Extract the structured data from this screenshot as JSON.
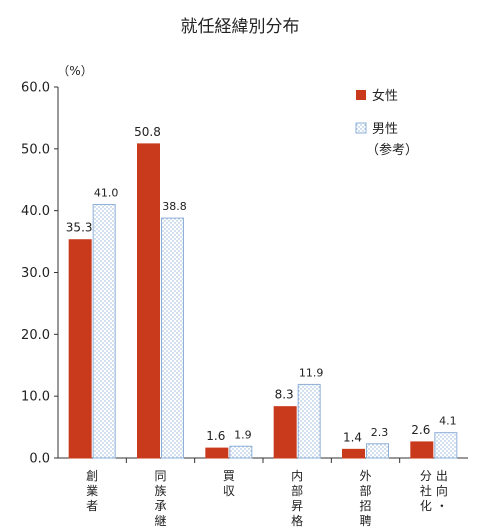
{
  "chart_data": {
    "type": "bar",
    "title": "就任経緯別分布",
    "unit_label": "（%）",
    "ylim": [
      0,
      60
    ],
    "yticks": [
      "0.0",
      "10.0",
      "20.0",
      "30.0",
      "40.0",
      "50.0",
      "60.0"
    ],
    "categories": [
      [
        "創",
        "業",
        "者"
      ],
      [
        "同",
        "族",
        "承",
        "継"
      ],
      [
        "買",
        "収"
      ],
      [
        "内",
        "部",
        "昇",
        "格"
      ],
      [
        "外",
        "部",
        "招",
        "聘"
      ],
      [
        [
          "分",
          "社",
          "化"
        ],
        [
          "出",
          "向",
          "・"
        ]
      ]
    ],
    "series": [
      {
        "name": "女性",
        "values": [
          35.3,
          50.8,
          1.6,
          8.3,
          1.4,
          2.6
        ],
        "labels": [
          "35.3",
          "50.8",
          "1.6",
          "8.3",
          "1.4",
          "2.6"
        ],
        "color": "#c9391b"
      },
      {
        "name": "男性",
        "name_sub": "（参考）",
        "values": [
          41.0,
          38.8,
          1.9,
          11.9,
          2.3,
          4.1
        ],
        "labels": [
          "41.0",
          "38.8",
          "1.9",
          "11.9",
          "2.3",
          "4.1"
        ],
        "color": "#a9c1e6"
      }
    ],
    "legend_position": "top-right",
    "grid": false
  }
}
